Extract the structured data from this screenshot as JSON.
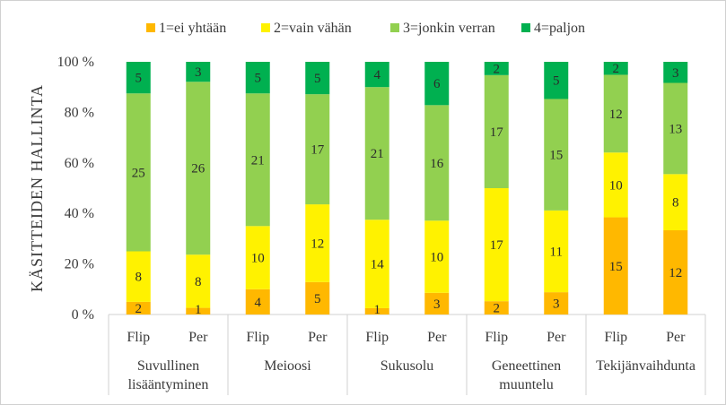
{
  "chart_data": {
    "type": "bar",
    "stacked": "percent",
    "title": "",
    "ylabel": "KÄSITTEIDEN HALLINTA",
    "xlabel": "",
    "ylim": [
      0,
      100
    ],
    "yticks": [
      "0 %",
      "20 %",
      "40 %",
      "60 %",
      "80 %",
      "100 %"
    ],
    "grid": false,
    "legend_position": "top",
    "groups": [
      {
        "label": "Suvullinen lisääntyminen",
        "label_lines": [
          "Suvullinen",
          "lisääntyminen"
        ]
      },
      {
        "label": "Meioosi",
        "label_lines": [
          "Meioosi"
        ]
      },
      {
        "label": "Sukusolu",
        "label_lines": [
          "Sukusolu"
        ]
      },
      {
        "label": "Geneettinen muuntelu",
        "label_lines": [
          "Geneettinen",
          "muuntelu"
        ]
      },
      {
        "label": "Tekijänvaihdunta",
        "label_lines": [
          "Tekijänvaihdunta"
        ]
      }
    ],
    "categories": [
      "Flip",
      "Per",
      "Flip",
      "Per",
      "Flip",
      "Per",
      "Flip",
      "Per",
      "Flip",
      "Per"
    ],
    "series": [
      {
        "name": "1=ei yhtään",
        "color": "#FFB800",
        "values": [
          2,
          1,
          4,
          5,
          1,
          3,
          2,
          3,
          15,
          12
        ]
      },
      {
        "name": "2=vain vähän",
        "color": "#FFF200",
        "values": [
          8,
          8,
          10,
          12,
          14,
          10,
          17,
          11,
          10,
          8
        ]
      },
      {
        "name": "3=jonkin verran",
        "color": "#92D050",
        "values": [
          25,
          26,
          21,
          17,
          21,
          16,
          17,
          15,
          12,
          13
        ]
      },
      {
        "name": "4=paljon",
        "color": "#00B050",
        "values": [
          5,
          3,
          5,
          5,
          4,
          6,
          2,
          5,
          2,
          3
        ]
      }
    ]
  }
}
